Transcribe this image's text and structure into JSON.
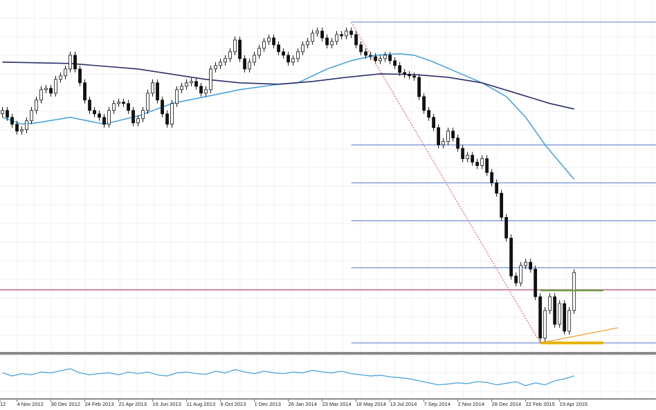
{
  "chart_data": {
    "type": "candlestick",
    "xlim": [
      -0.5,
      134.9
    ],
    "ylim": [
      0,
      510
    ],
    "xticks": [
      {
        "value": -0.5,
        "label": "12"
      },
      {
        "value": 3,
        "label": "4 Nov 2012"
      },
      {
        "value": 10,
        "label": "30 Dec 2012"
      },
      {
        "value": 17,
        "label": "24 Feb 2013"
      },
      {
        "value": 24,
        "label": "21 Apr 2013"
      },
      {
        "value": 31,
        "label": "16 Jun 2013"
      },
      {
        "value": 38,
        "label": "11 Aug 2013"
      },
      {
        "value": 45,
        "label": "6 Oct 2013"
      },
      {
        "value": 52,
        "label": "1 Dec 2013"
      },
      {
        "value": 59,
        "label": "26 Jan 2014"
      },
      {
        "value": 66,
        "label": "23 Mar 2014"
      },
      {
        "value": 73,
        "label": "18 May 2014"
      },
      {
        "value": 80,
        "label": "13 Jul 2014"
      },
      {
        "value": 87,
        "label": "7 Sep 2014"
      },
      {
        "value": 94,
        "label": "2 Nov 2014"
      },
      {
        "value": 101,
        "label": "28 Dec 2014"
      },
      {
        "value": 108,
        "label": "22 Feb 2015"
      },
      {
        "value": 115,
        "label": "19 Apr 2015"
      }
    ],
    "open": [
      345,
      350,
      340,
      330,
      320,
      322,
      335,
      350,
      365,
      380,
      382,
      375,
      395,
      400,
      410,
      430,
      410,
      390,
      365,
      350,
      345,
      340,
      330,
      350,
      360,
      362,
      360,
      350,
      332,
      338,
      350,
      375,
      390,
      365,
      345,
      330,
      360,
      380,
      385,
      390,
      392,
      385,
      375,
      380,
      410,
      415,
      420,
      425,
      435,
      452,
      425,
      410,
      420,
      430,
      440,
      450,
      455,
      445,
      435,
      430,
      420,
      425,
      435,
      445,
      450,
      462,
      465,
      455,
      445,
      450,
      460,
      458,
      465,
      460,
      445,
      435,
      430,
      428,
      422,
      425,
      430,
      422,
      415,
      405,
      402,
      400,
      398,
      370,
      350,
      340,
      325,
      300,
      305,
      320,
      310,
      295,
      280,
      285,
      275,
      270,
      280,
      260,
      245,
      230,
      195,
      165,
      110,
      100,
      125,
      130,
      120,
      80,
      20,
      60,
      80,
      40,
      70,
      30,
      60
    ],
    "high": [
      355,
      355,
      345,
      335,
      327,
      340,
      355,
      370,
      385,
      387,
      387,
      400,
      405,
      415,
      435,
      435,
      415,
      395,
      370,
      355,
      350,
      345,
      355,
      365,
      367,
      367,
      365,
      355,
      343,
      355,
      380,
      395,
      395,
      370,
      350,
      365,
      385,
      390,
      395,
      397,
      397,
      390,
      385,
      415,
      420,
      425,
      430,
      440,
      457,
      457,
      430,
      425,
      435,
      445,
      455,
      460,
      460,
      450,
      440,
      435,
      430,
      440,
      450,
      455,
      467,
      470,
      470,
      460,
      455,
      465,
      465,
      470,
      470,
      465,
      450,
      440,
      435,
      433,
      430,
      435,
      435,
      427,
      420,
      410,
      407,
      405,
      403,
      375,
      355,
      345,
      330,
      310,
      325,
      325,
      315,
      300,
      290,
      290,
      280,
      285,
      285,
      265,
      250,
      235,
      200,
      170,
      115,
      130,
      135,
      135,
      125,
      85,
      65,
      85,
      85,
      75,
      75,
      65,
      120
    ],
    "low": [
      340,
      335,
      325,
      315,
      315,
      317,
      330,
      345,
      360,
      375,
      370,
      370,
      390,
      395,
      405,
      405,
      385,
      360,
      345,
      340,
      335,
      325,
      325,
      345,
      355,
      355,
      345,
      327,
      327,
      333,
      345,
      370,
      360,
      340,
      325,
      325,
      355,
      375,
      380,
      385,
      380,
      370,
      370,
      375,
      405,
      410,
      415,
      420,
      430,
      420,
      405,
      405,
      415,
      425,
      435,
      445,
      440,
      430,
      425,
      415,
      415,
      420,
      430,
      440,
      445,
      457,
      450,
      440,
      440,
      445,
      453,
      453,
      455,
      440,
      430,
      425,
      423,
      417,
      417,
      420,
      417,
      410,
      400,
      397,
      395,
      393,
      365,
      345,
      335,
      320,
      295,
      295,
      300,
      305,
      290,
      275,
      275,
      270,
      265,
      265,
      255,
      240,
      225,
      190,
      160,
      105,
      95,
      95,
      120,
      115,
      75,
      15,
      15,
      55,
      35,
      35,
      25,
      25,
      55
    ],
    "close": [
      350,
      340,
      330,
      320,
      322,
      335,
      350,
      365,
      380,
      382,
      375,
      395,
      400,
      410,
      430,
      410,
      390,
      365,
      350,
      345,
      340,
      330,
      350,
      360,
      362,
      360,
      350,
      332,
      338,
      350,
      375,
      390,
      365,
      345,
      330,
      360,
      380,
      385,
      390,
      392,
      385,
      375,
      380,
      410,
      415,
      420,
      425,
      435,
      452,
      425,
      410,
      420,
      430,
      440,
      450,
      455,
      445,
      435,
      430,
      420,
      425,
      435,
      445,
      450,
      462,
      465,
      455,
      445,
      450,
      460,
      458,
      465,
      460,
      445,
      435,
      430,
      428,
      422,
      425,
      430,
      422,
      415,
      405,
      402,
      400,
      398,
      370,
      350,
      340,
      325,
      300,
      305,
      320,
      310,
      295,
      280,
      285,
      275,
      270,
      280,
      260,
      245,
      230,
      195,
      165,
      110,
      100,
      125,
      130,
      120,
      80,
      20,
      60,
      80,
      40,
      70,
      30,
      60,
      115
    ],
    "overlays": [
      {
        "color": "#4aa3dc",
        "x": [
          0,
          4,
          7,
          14,
          21,
          28,
          35,
          42,
          49,
          57,
          61,
          67,
          72,
          77,
          82,
          85,
          89,
          94,
          99,
          104,
          108,
          112,
          118
        ],
        "values": [
          340,
          330,
          332,
          340,
          330,
          342,
          360,
          370,
          380,
          388,
          390,
          410,
          422,
          430,
          432,
          430,
          420,
          405,
          390,
          370,
          340,
          300,
          250
        ]
      },
      {
        "color": "#2b2f6b",
        "x": [
          0,
          14,
          28,
          42,
          49,
          57,
          64,
          71,
          78,
          85,
          92,
          99,
          106,
          113,
          118
        ],
        "values": [
          420,
          418,
          410,
          395,
          390,
          388,
          392,
          398,
          403,
          402,
          398,
          390,
          375,
          360,
          352
        ]
      }
    ],
    "levels": {
      "color": "#6f8fd8",
      "start": 72,
      "values": [
        478,
        300,
        245,
        190,
        122,
        13
      ]
    },
    "support": {
      "color": "#c98b9a",
      "value": 90
    },
    "segments": [
      {
        "color": "#5f9f3a",
        "x": [
          111,
          124
        ],
        "values": [
          89,
          89
        ]
      },
      {
        "color": "#e8b400",
        "x": [
          111,
          124
        ],
        "values": [
          13,
          13
        ]
      },
      {
        "color": "#f0a030",
        "x": [
          111,
          127
        ],
        "values": [
          13,
          35
        ]
      },
      {
        "color": "#e07070",
        "x": [
          72,
          111
        ],
        "values": [
          478,
          13
        ]
      }
    ],
    "indicator": {
      "color": "#4aa3dc",
      "ylim": [
        0,
        100
      ],
      "x": [
        0,
        2,
        4,
        6,
        8,
        10,
        12,
        14,
        16,
        18,
        20,
        22,
        24,
        26,
        28,
        30,
        32,
        34,
        36,
        38,
        40,
        42,
        44,
        46,
        48,
        50,
        52,
        54,
        56,
        58,
        60,
        62,
        64,
        66,
        68,
        70,
        72,
        74,
        76,
        78,
        80,
        82,
        84,
        86,
        88,
        90,
        92,
        94,
        96,
        98,
        100,
        102,
        104,
        106,
        108,
        110,
        112,
        114,
        116,
        118
      ],
      "values": [
        60,
        52,
        58,
        55,
        62,
        60,
        65,
        70,
        60,
        55,
        58,
        60,
        55,
        62,
        58,
        62,
        55,
        52,
        60,
        62,
        58,
        56,
        64,
        60,
        68,
        62,
        58,
        64,
        60,
        58,
        62,
        60,
        66,
        62,
        60,
        64,
        58,
        55,
        52,
        54,
        50,
        48,
        45,
        40,
        35,
        30,
        32,
        35,
        33,
        38,
        36,
        30,
        34,
        38,
        28,
        35,
        30,
        40,
        45,
        52
      ]
    }
  }
}
